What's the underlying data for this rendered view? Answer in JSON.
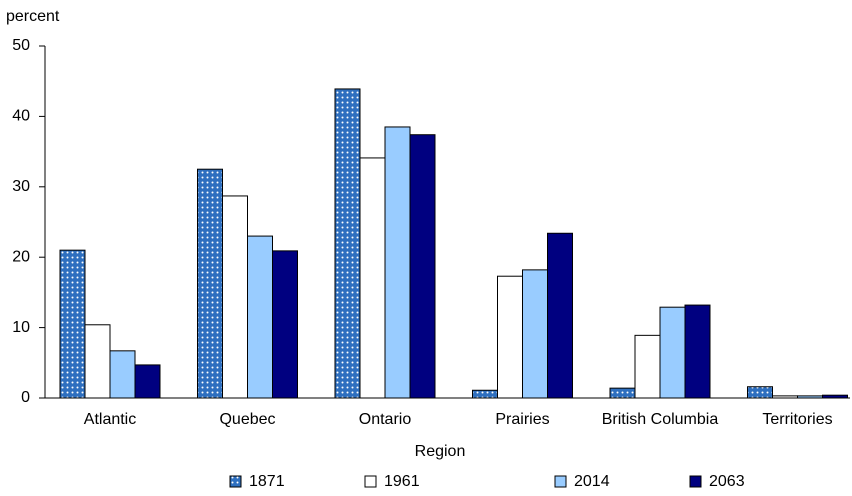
{
  "chart_data": {
    "type": "bar",
    "y_axis_label": "percent",
    "x_axis_label": "Region",
    "categories": [
      "Atlantic",
      "Quebec",
      "Ontario",
      "Prairies",
      "British Columbia",
      "Territories"
    ],
    "series": [
      {
        "name": "1871",
        "color": "#2e6fbf",
        "pattern": "dots",
        "values": [
          21.0,
          32.5,
          43.9,
          1.1,
          1.4,
          1.6
        ]
      },
      {
        "name": "1961",
        "color": "#ffffff",
        "values": [
          10.4,
          28.7,
          34.1,
          17.3,
          8.9,
          0.3
        ]
      },
      {
        "name": "2014",
        "color": "#99ccff",
        "values": [
          6.7,
          23.0,
          38.5,
          18.2,
          12.9,
          0.3
        ]
      },
      {
        "name": "2063",
        "color": "#000080",
        "values": [
          4.7,
          20.9,
          37.4,
          23.4,
          13.2,
          0.4
        ]
      }
    ],
    "ylim": [
      0,
      50
    ],
    "yticks": [
      0,
      10,
      20,
      30,
      40,
      50
    ],
    "grid": false
  }
}
